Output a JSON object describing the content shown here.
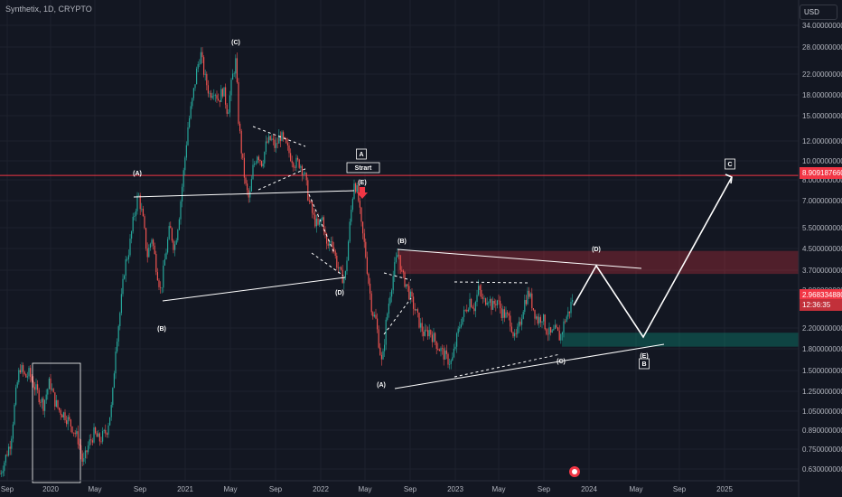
{
  "header": {
    "title": "Synthetix, 1D, CRYPTO",
    "currency": "USD"
  },
  "chart_data": {
    "type": "candlestick",
    "title": "Synthetix, 1D, CRYPTO",
    "y_scale": "log",
    "ylim": [
      0.57,
      38
    ],
    "x_ticks": [
      "Sep",
      "2020",
      "May",
      "Sep",
      "2021",
      "May",
      "Sep",
      "2022",
      "May",
      "Sep",
      "2023",
      "May",
      "Sep",
      "2024",
      "May",
      "Sep",
      "2025"
    ],
    "y_ticks": [
      "34.000000000",
      "28.000000000",
      "22.000000000",
      "18.000000000",
      "15.000000000",
      "12.000000000",
      "10.000000000",
      "8.000000000",
      "7.000000000",
      "5.500000000",
      "4.500000000",
      "3.700000000",
      "3.000000000",
      "2.200000000",
      "1.800000000",
      "1.500000000",
      "1.250000000",
      "1.050000000",
      "0.890000000",
      "0.750000000",
      "0.630000000"
    ],
    "price_path": [
      [
        0,
        0.55
      ],
      [
        5,
        0.62
      ],
      [
        12,
        0.75
      ],
      [
        18,
        1.2
      ],
      [
        22,
        1.5
      ],
      [
        28,
        1.35
      ],
      [
        32,
        1.4
      ],
      [
        40,
        1.2
      ],
      [
        48,
        1.05
      ],
      [
        55,
        1.3
      ],
      [
        60,
        1.1
      ],
      [
        65,
        1.0
      ],
      [
        72,
        0.95
      ],
      [
        80,
        0.85
      ],
      [
        87,
        0.75
      ],
      [
        92,
        0.6
      ],
      [
        98,
        0.72
      ],
      [
        104,
        0.8
      ],
      [
        110,
        0.75
      ],
      [
        118,
        0.82
      ],
      [
        124,
        1.05
      ],
      [
        128,
        1.8
      ],
      [
        133,
        2.5
      ],
      [
        138,
        3.8
      ],
      [
        143,
        4.5
      ],
      [
        148,
        6.0
      ],
      [
        153,
        7.5
      ],
      [
        158,
        6.0
      ],
      [
        163,
        4.2
      ],
      [
        168,
        5.0
      ],
      [
        173,
        3.8
      ],
      [
        178,
        3.0
      ],
      [
        183,
        4.2
      ],
      [
        188,
        5.5
      ],
      [
        193,
        4.5
      ],
      [
        198,
        6.0
      ],
      [
        203,
        9.0
      ],
      [
        208,
        14.0
      ],
      [
        213,
        18.0
      ],
      [
        218,
        24.0
      ],
      [
        222,
        28.0
      ],
      [
        227,
        22.0
      ],
      [
        232,
        19.0
      ],
      [
        237,
        20.0
      ],
      [
        242,
        18.0
      ],
      [
        247,
        20.0
      ],
      [
        252,
        16.0
      ],
      [
        257,
        22.0
      ],
      [
        261,
        26.0
      ],
      [
        264,
        15.0
      ],
      [
        268,
        10.5
      ],
      [
        272,
        8.0
      ],
      [
        276,
        7.0
      ],
      [
        280,
        9.5
      ],
      [
        285,
        11.0
      ],
      [
        290,
        10.0
      ],
      [
        295,
        12.0
      ],
      [
        300,
        12.5
      ],
      [
        305,
        11.5
      ],
      [
        310,
        13.0
      ],
      [
        315,
        12.0
      ],
      [
        320,
        11.0
      ],
      [
        326,
        10.0
      ],
      [
        332,
        10.0
      ],
      [
        337,
        9.0
      ],
      [
        342,
        7.0
      ],
      [
        347,
        6.0
      ],
      [
        352,
        5.5
      ],
      [
        357,
        6.0
      ],
      [
        362,
        4.5
      ],
      [
        367,
        5.0
      ],
      [
        372,
        4.0
      ],
      [
        377,
        3.5
      ],
      [
        382,
        3.4
      ],
      [
        387,
        5.5
      ],
      [
        392,
        8.5
      ],
      [
        396,
        7.5
      ],
      [
        400,
        5.5
      ],
      [
        404,
        4.5
      ],
      [
        408,
        3.3
      ],
      [
        412,
        2.5
      ],
      [
        416,
        2.3
      ],
      [
        420,
        1.8
      ],
      [
        423,
        1.5
      ],
      [
        427,
        2.2
      ],
      [
        432,
        3.0
      ],
      [
        437,
        3.8
      ],
      [
        441,
        4.4
      ],
      [
        445,
        3.5
      ],
      [
        450,
        3.2
      ],
      [
        455,
        2.8
      ],
      [
        460,
        2.5
      ],
      [
        465,
        2.2
      ],
      [
        470,
        2.0
      ],
      [
        475,
        2.1
      ],
      [
        480,
        1.95
      ],
      [
        485,
        1.8
      ],
      [
        490,
        1.7
      ],
      [
        495,
        1.6
      ],
      [
        500,
        1.55
      ],
      [
        505,
        1.9
      ],
      [
        510,
        2.3
      ],
      [
        515,
        2.5
      ],
      [
        520,
        2.8
      ],
      [
        525,
        2.6
      ],
      [
        530,
        3.1
      ],
      [
        535,
        2.7
      ],
      [
        540,
        2.9
      ],
      [
        545,
        2.6
      ],
      [
        550,
        2.8
      ],
      [
        555,
        2.5
      ],
      [
        560,
        2.4
      ],
      [
        565,
        2.3
      ],
      [
        570,
        1.9
      ],
      [
        575,
        2.2
      ],
      [
        580,
        2.7
      ],
      [
        585,
        3.0
      ],
      [
        590,
        2.6
      ],
      [
        595,
        2.3
      ],
      [
        600,
        2.4
      ],
      [
        605,
        2.1
      ],
      [
        610,
        2.0
      ],
      [
        615,
        2.1
      ],
      [
        620,
        1.95
      ],
      [
        625,
        2.3
      ],
      [
        630,
        2.5
      ],
      [
        635,
        2.97
      ]
    ],
    "last_price": "2.968334880",
    "countdown": "12:36:35",
    "target_price": "8.909187660",
    "annotations": [
      "(A)",
      "(B)",
      "(C)",
      "(D)",
      "(E)",
      "A",
      "Strart",
      "(B)",
      "(A)",
      "(D)",
      "(C)",
      "(E)",
      "B",
      "C"
    ]
  },
  "colors": {
    "bg": "#131722",
    "grid": "#1f2330",
    "up": "#26a69a",
    "down": "#ef5350",
    "resistance": "#f23645",
    "support": "#089981"
  }
}
